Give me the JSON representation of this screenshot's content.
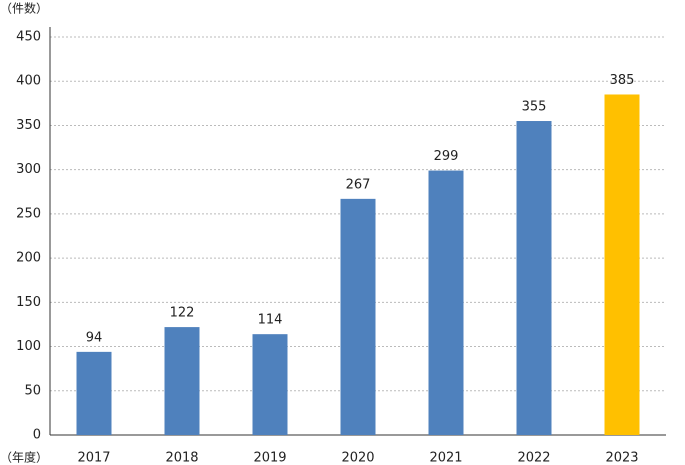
{
  "chart_data": {
    "type": "bar",
    "y_label": "（件数）",
    "x_label": "（年度）",
    "categories": [
      "2017",
      "2018",
      "2019",
      "2020",
      "2021",
      "2022",
      "2023"
    ],
    "values": [
      94,
      122,
      114,
      267,
      299,
      355,
      385
    ],
    "colors": [
      "#4f81bd",
      "#4f81bd",
      "#4f81bd",
      "#4f81bd",
      "#4f81bd",
      "#4f81bd",
      "#ffc000"
    ],
    "ylim": [
      0,
      450
    ],
    "yticks": [
      0,
      50,
      100,
      150,
      200,
      250,
      300,
      350,
      400,
      450
    ],
    "grid": true
  }
}
